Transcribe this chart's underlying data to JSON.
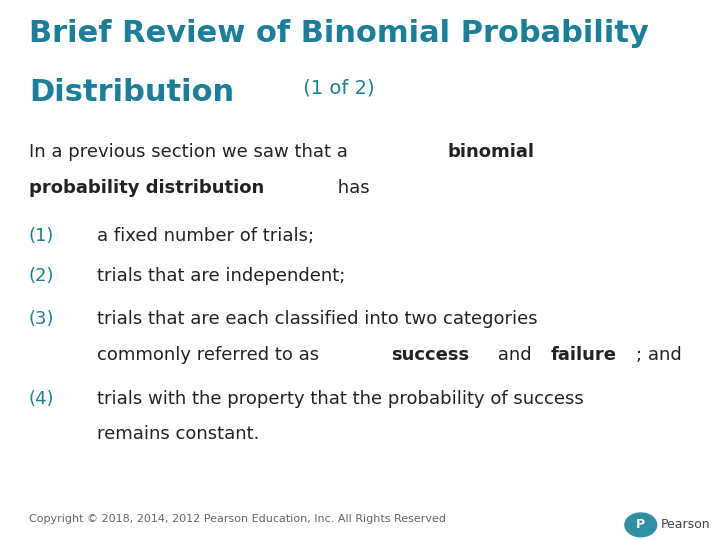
{
  "bg_color": "#ffffff",
  "title_line1": "Brief Review of Binomial Probability",
  "title_line2": "Distribution",
  "title_suffix": " (1 of 2)",
  "title_color": "#1a7f9c",
  "title_fontsize": 22,
  "title_suffix_fontsize": 14,
  "body_color": "#222222",
  "teal_color": "#1a7f9c",
  "body_fontsize": 13,
  "footer_text": "Copyright © 2018, 2014, 2012 Pearson Education, Inc. All Rights Reserved",
  "footer_color": "#666666",
  "footer_fontsize": 8,
  "pearson_color": "#2e8fa3",
  "pearson_text_color": "#444444"
}
